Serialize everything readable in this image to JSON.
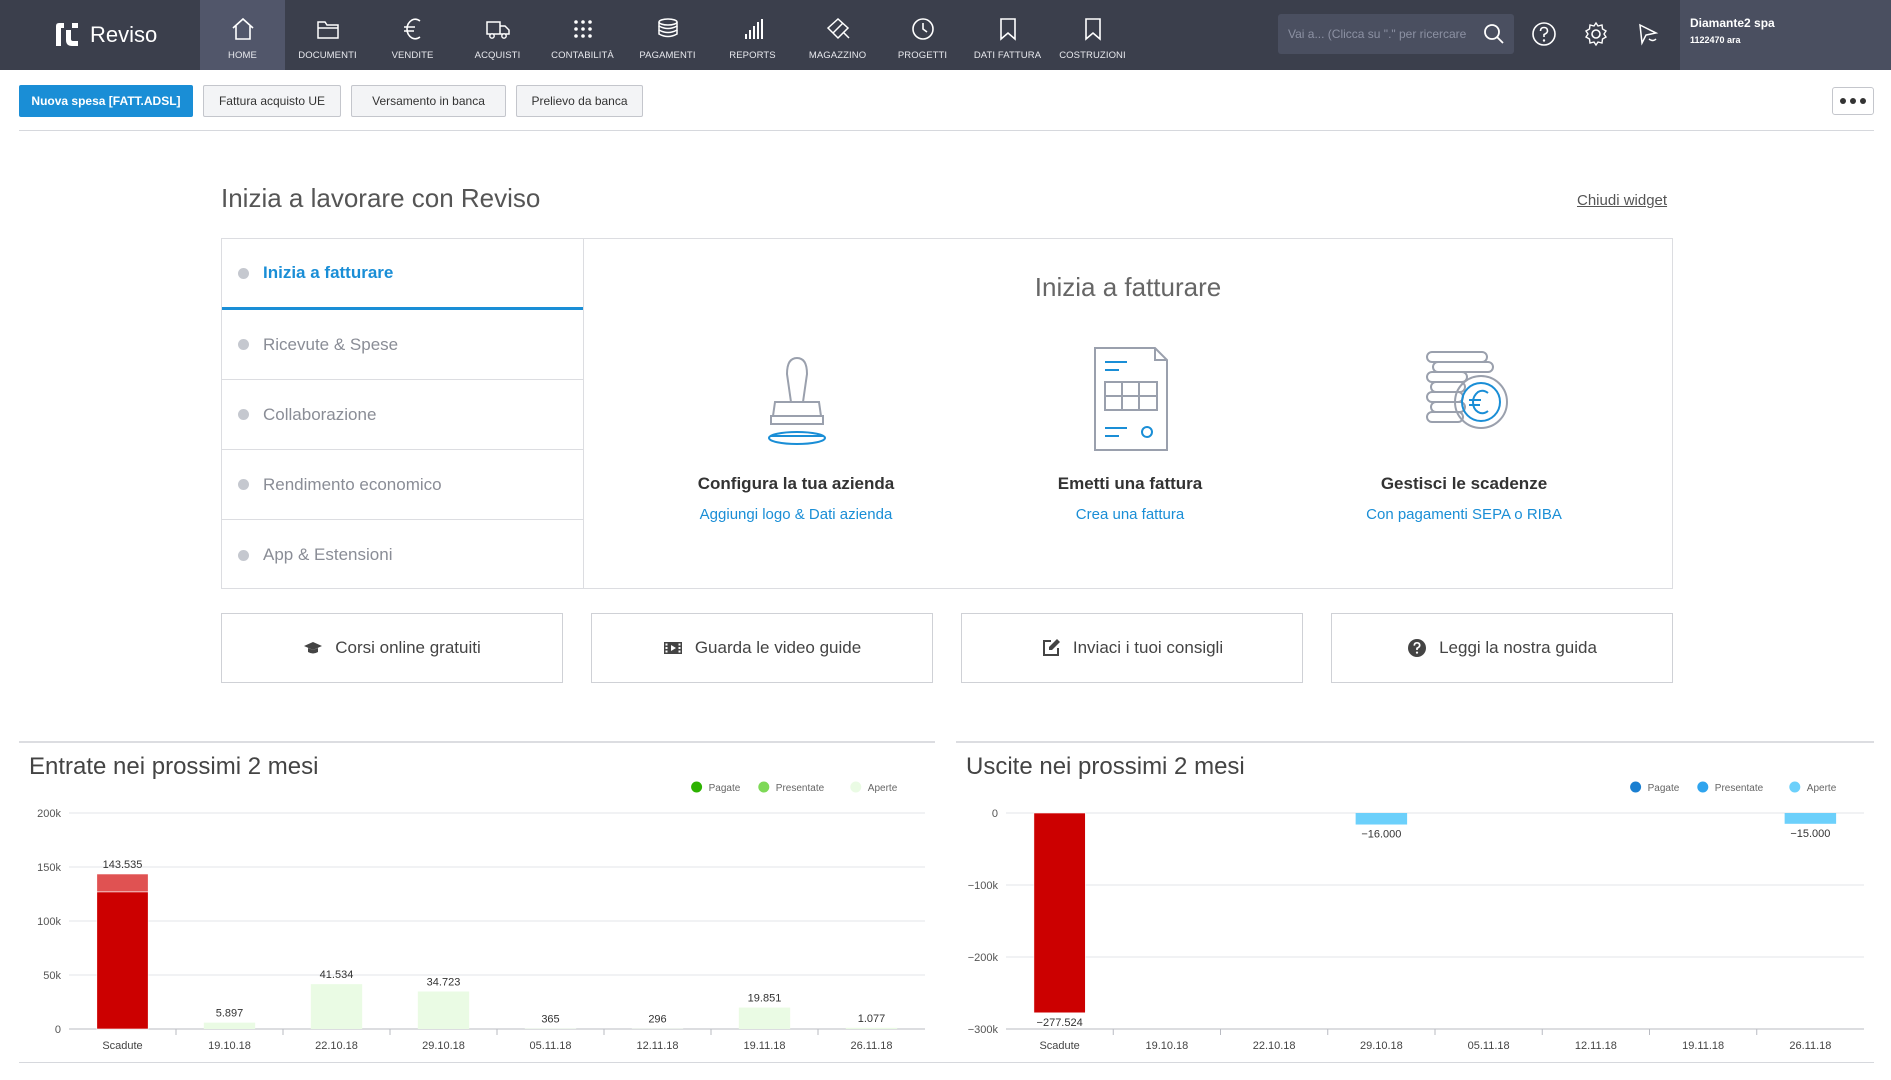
{
  "app": {
    "name": "Reviso"
  },
  "nav": [
    {
      "label": "HOME",
      "icon": "home-icon",
      "active": true
    },
    {
      "label": "DOCUMENTI",
      "icon": "folder-icon",
      "active": false
    },
    {
      "label": "VENDITE",
      "icon": "euro-icon",
      "active": false
    },
    {
      "label": "ACQUISTI",
      "icon": "truck-icon",
      "active": false
    },
    {
      "label": "CONTABILITÀ",
      "icon": "grid-icon",
      "active": false
    },
    {
      "label": "PAGAMENTI",
      "icon": "coins-icon",
      "active": false
    },
    {
      "label": "REPORTS",
      "icon": "bar-chart-icon",
      "active": false
    },
    {
      "label": "MAGAZZINO",
      "icon": "warehouse-icon",
      "active": false
    },
    {
      "label": "PROGETTI",
      "icon": "clock-icon",
      "active": false
    },
    {
      "label": "DATI FATTURA",
      "icon": "bookmark-icon",
      "active": false
    },
    {
      "label": "COSTRUZIONI",
      "icon": "bookmark-icon",
      "active": false
    }
  ],
  "search": {
    "placeholder": "Vai a... (Clicca su \".\" per ricercare"
  },
  "company": {
    "name": "Diamante2 spa",
    "id": "1122470 ara"
  },
  "actions": {
    "new_expense": "Nuova spesa [FATT.ADSL]",
    "eu_invoice": "Fattura acquisto UE",
    "bank_deposit": "Versamento in banca",
    "bank_withdrawal": "Prelievo da banca"
  },
  "widget": {
    "title": "Inizia a lavorare con Reviso",
    "close_label": "Chiudi widget",
    "tabs": [
      {
        "label": "Inizia a fatturare",
        "active": true
      },
      {
        "label": "Ricevute & Spese",
        "active": false
      },
      {
        "label": "Collaborazione",
        "active": false
      },
      {
        "label": "Rendimento economico",
        "active": false
      },
      {
        "label": "App & Estensioni",
        "active": false
      }
    ],
    "panel_title": "Inizia a fatturare",
    "features": [
      {
        "title": "Configura la tua azienda",
        "link": "Aggiungi logo & Dati azienda",
        "icon": "stamp-icon"
      },
      {
        "title": "Emetti una fattura",
        "link": "Crea una fattura",
        "icon": "invoice-icon"
      },
      {
        "title": "Gestisci le scadenze",
        "link": "Con pagamenti SEPA o RIBA",
        "icon": "coins-euro-icon"
      }
    ]
  },
  "help_links": [
    {
      "label": "Corsi online gratuiti",
      "icon": "graduation-cap-icon"
    },
    {
      "label": "Guarda le video guide",
      "icon": "video-icon"
    },
    {
      "label": "Inviaci i tuoi consigli",
      "icon": "edit-icon"
    },
    {
      "label": "Leggi la nostra guida",
      "icon": "question-icon"
    }
  ],
  "colors": {
    "accent": "#1a8ed6",
    "topbar": "#3b3f4c",
    "overdue": "#cc0000"
  },
  "chart_data": [
    {
      "type": "bar",
      "title": "Entrate nei prossimi 2 mesi",
      "categories": [
        "Scadute",
        "19.10.18",
        "22.10.18",
        "29.10.18",
        "05.11.18",
        "12.11.18",
        "19.11.18",
        "26.11.18"
      ],
      "labels": [
        "143.535",
        "5.897",
        "41.534",
        "34.723",
        "365",
        "296",
        "19.851",
        "1.077"
      ],
      "series": [
        {
          "name": "Pagate",
          "color": "#2db200",
          "values": [
            0,
            0,
            0,
            0,
            0,
            0,
            0,
            0
          ]
        },
        {
          "name": "Presentate",
          "color": "#7ed957",
          "values": [
            0,
            0,
            0,
            0,
            0,
            0,
            0,
            0
          ]
        },
        {
          "name": "Aperte",
          "color": "#eafbe4",
          "values": [
            0,
            5897,
            41534,
            34723,
            365,
            296,
            19851,
            1077
          ]
        }
      ],
      "overdue": [
        {
          "value": 127000,
          "color": "#cc0000"
        },
        {
          "value": 16535,
          "color": "#e05252"
        }
      ],
      "yticks": [
        "0",
        "50k",
        "100k",
        "150k",
        "200k"
      ],
      "ylim": [
        0,
        200000
      ],
      "legend": "top-right"
    },
    {
      "type": "bar",
      "title": "Uscite nei prossimi 2 mesi",
      "categories": [
        "Scadute",
        "19.10.18",
        "22.10.18",
        "29.10.18",
        "05.11.18",
        "12.11.18",
        "19.11.18",
        "26.11.18"
      ],
      "labels": [
        "−277.524",
        "",
        "",
        "−16.000",
        "",
        "",
        "",
        "−15.000"
      ],
      "series": [
        {
          "name": "Pagate",
          "color": "#1a7fd1",
          "values": [
            0,
            0,
            0,
            0,
            0,
            0,
            0,
            0
          ]
        },
        {
          "name": "Presentate",
          "color": "#2fa4ee",
          "values": [
            0,
            0,
            0,
            0,
            0,
            0,
            0,
            0
          ]
        },
        {
          "name": "Aperte",
          "color": "#6cd0fb",
          "values": [
            0,
            0,
            0,
            -16000,
            0,
            0,
            0,
            -15000
          ]
        }
      ],
      "overdue": [
        {
          "value": -277524,
          "color": "#cc0000"
        }
      ],
      "yticks": [
        "−300k",
        "−200k",
        "−100k",
        "0"
      ],
      "ylim": [
        -300000,
        0
      ],
      "legend": "top-right"
    }
  ]
}
